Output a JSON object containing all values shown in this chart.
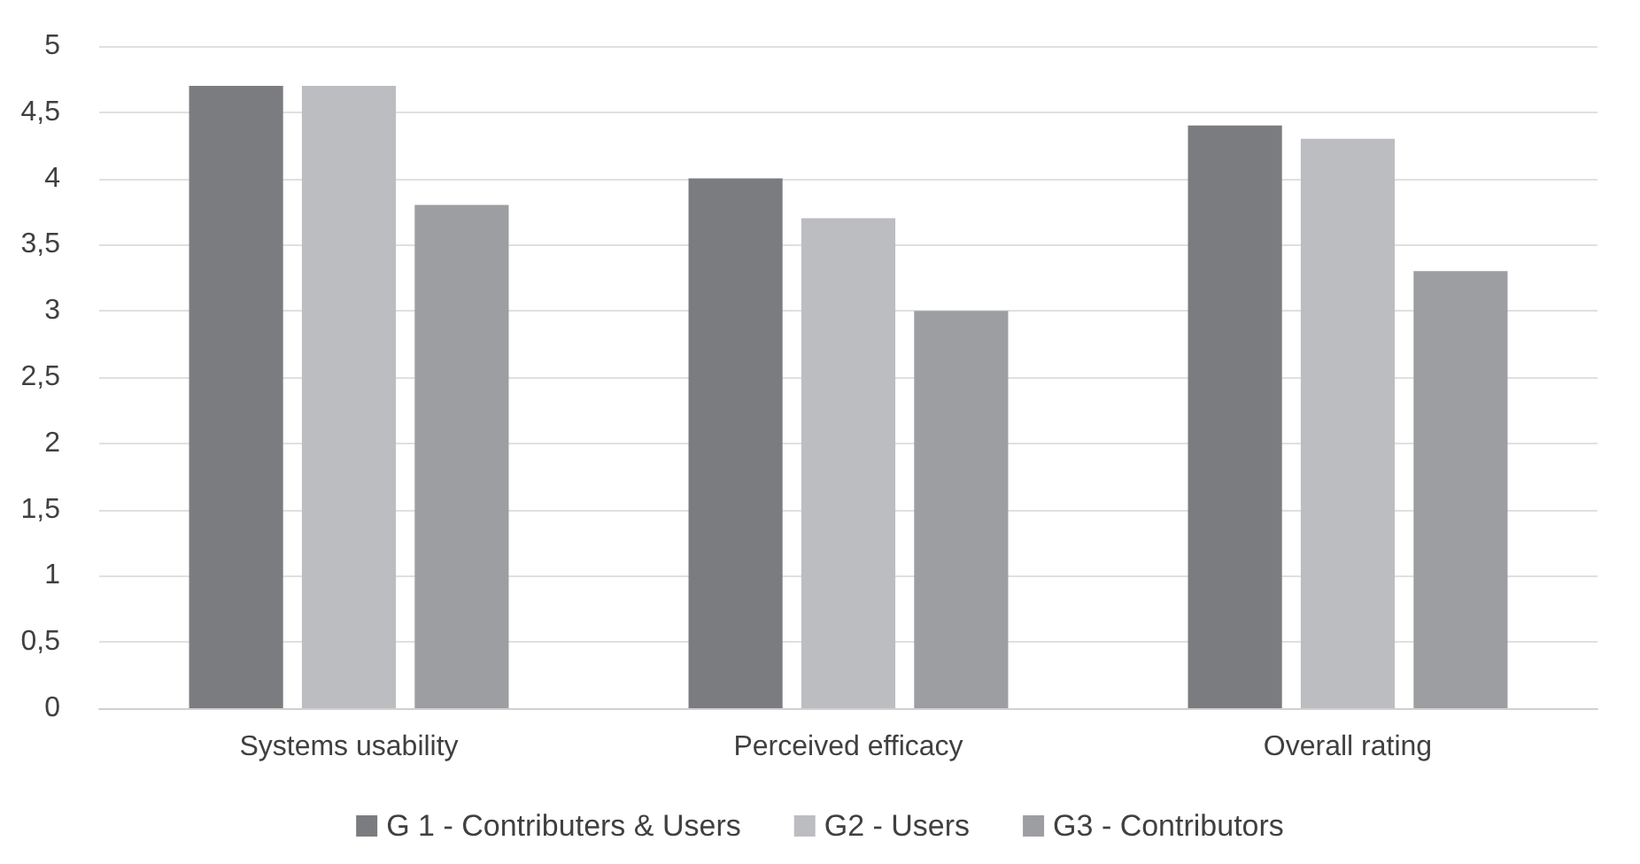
{
  "chart_data": {
    "type": "bar",
    "categories": [
      "Systems usability",
      "Perceived efficacy",
      "Overall rating"
    ],
    "series": [
      {
        "name": "G 1 - Contributers & Users",
        "color": "#7b7c80",
        "values": [
          4.7,
          4.0,
          4.4
        ]
      },
      {
        "name": "G2 - Users",
        "color": "#bcbdc1",
        "values": [
          4.7,
          3.7,
          4.3
        ]
      },
      {
        "name": "G3 - Contributors",
        "color": "#9d9ea2",
        "values": [
          3.8,
          3.0,
          3.3
        ]
      }
    ],
    "ylim": [
      0,
      5
    ],
    "yticks": [
      0,
      {
        "value": 0.5,
        "label": "0,5"
      },
      1,
      {
        "value": 1.5,
        "label": "1,5"
      },
      2,
      {
        "value": 2.5,
        "label": "2,5"
      },
      3,
      {
        "value": 3.5,
        "label": "3,5"
      },
      4,
      {
        "value": 4.5,
        "label": "4,5"
      },
      5
    ],
    "grid": "y",
    "legend": "bottom"
  }
}
